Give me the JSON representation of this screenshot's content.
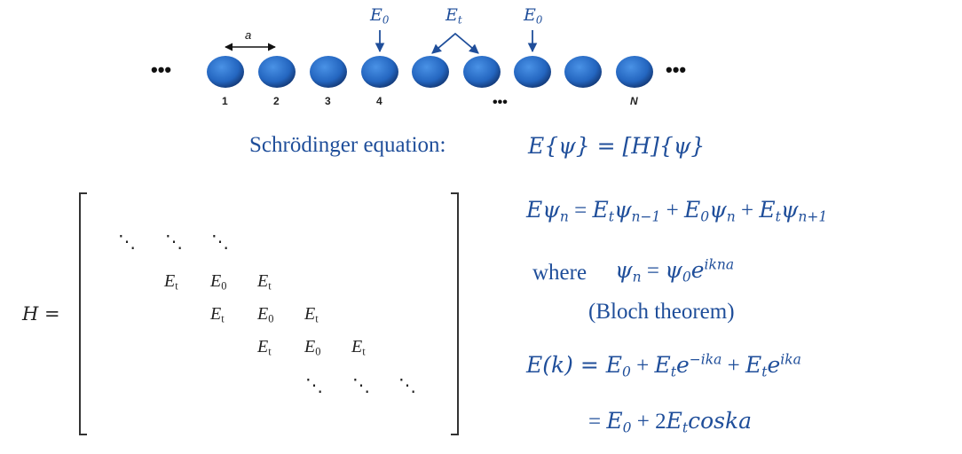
{
  "chain": {
    "spacing_symbol": "a",
    "site_labels": [
      "1",
      "2",
      "3",
      "4",
      "N"
    ],
    "onsite_label": "E",
    "onsite_sub": "0",
    "hopping_label": "E",
    "hopping_sub": "t",
    "ellipsis": "•••",
    "colors": {
      "atom": "#2a6fc9",
      "arrow": "#1f4e9a"
    }
  },
  "schrodinger": {
    "label": "Schrödinger equation:",
    "equation": "E{ψ} = [H]{ψ}"
  },
  "matrix": {
    "lhs": "H =",
    "dots": [
      "⋱",
      "⋱",
      "⋱",
      "⋱",
      "⋱",
      "⋱"
    ],
    "rows": [
      [
        {
          "s": "E",
          "b": "t"
        },
        {
          "s": "E",
          "b": "0"
        },
        {
          "s": "E",
          "b": "t"
        }
      ],
      [
        {
          "s": "E",
          "b": "t"
        },
        {
          "s": "E",
          "b": "0"
        },
        {
          "s": "E",
          "b": "t"
        }
      ],
      [
        {
          "s": "E",
          "b": "t"
        },
        {
          "s": "E",
          "b": "0"
        },
        {
          "s": "E",
          "b": "t"
        }
      ]
    ]
  },
  "equations": {
    "recurrence": {
      "lhs": "Eψ",
      "lhs_sub": "n",
      "eq": " = ",
      "t1": "E",
      "t1_sub": "t",
      "t1b": "ψ",
      "t1b_sub": "n−1",
      "plus1": " + ",
      "t2": "E",
      "t2_sub": "0",
      "t2b": "ψ",
      "t2b_sub": "n",
      "plus2": " + ",
      "t3": "E",
      "t3_sub": "t",
      "t3b": "ψ",
      "t3b_sub": "n+1"
    },
    "where_word": "where",
    "bloch": {
      "lhs": "ψ",
      "lhs_sub": "n",
      "eq": " = ",
      "rhs": "ψ",
      "rhs_sub": "0",
      "e": "e",
      "exp": "ikna"
    },
    "bloch_note": "(Bloch theorem)",
    "dispersion": {
      "lhs": "E(k) = ",
      "a": "E",
      "a_sub": "0",
      "plus": " + ",
      "b": "E",
      "b_sub": "t",
      "e1": "e",
      "e1_exp": "−ika",
      "plus2": " + ",
      "c": "E",
      "c_sub": "t",
      "e2": "e",
      "e2_exp": "ika"
    },
    "result": {
      "eq": "= ",
      "a": "E",
      "a_sub": "0",
      "plus": " + 2",
      "b": "E",
      "b_sub": "t",
      "tail": "coska"
    }
  }
}
